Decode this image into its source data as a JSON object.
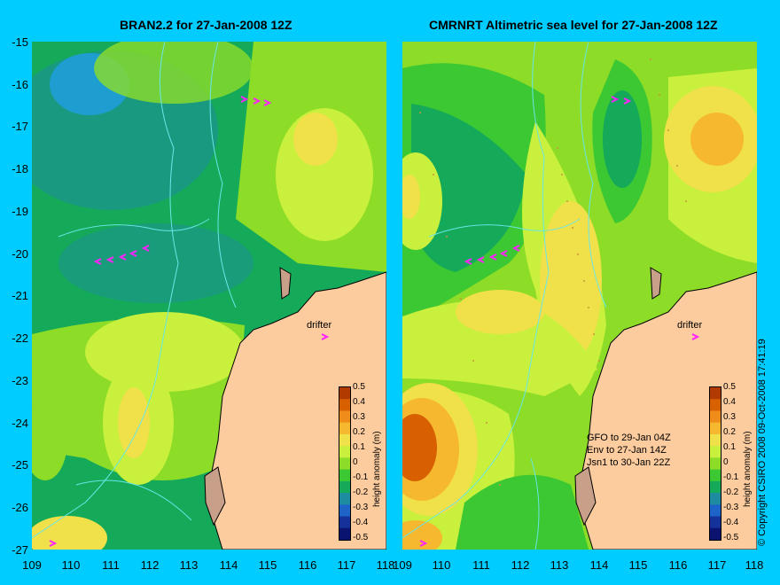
{
  "left_panel": {
    "title": "BRAN2.2 for 27-Jan-2008 12Z",
    "drifter_label": "drifter"
  },
  "right_panel": {
    "title": "CMRNRT Altimetric sea level  for 27-Jan-2008 12Z",
    "drifter_label": "drifter",
    "notes": [
      "GFO to 29-Jan 04Z",
      "Env to 27-Jan 14Z",
      "Jsn1 to 30-Jan 22Z"
    ]
  },
  "y_ticks": [
    "-15",
    "-16",
    "-17",
    "-18",
    "-19",
    "-20",
    "-21",
    "-22",
    "-23",
    "-24",
    "-25",
    "-26",
    "-27"
  ],
  "x_ticks": [
    "109",
    "110",
    "111",
    "112",
    "113",
    "114",
    "115",
    "116",
    "117",
    "118"
  ],
  "colorbar": {
    "title": "height anomaly (m)",
    "labels": [
      "0.5",
      "0.4",
      "0.3",
      "0.2",
      "0.1",
      "0",
      "-0.1",
      "-0.2",
      "-0.3",
      "-0.4",
      "-0.5"
    ],
    "colors": [
      "#b03a00",
      "#d86000",
      "#f08c1a",
      "#f5b82e",
      "#f0e04a",
      "#c8f03c",
      "#8cdc28",
      "#3cc832",
      "#14aa5a",
      "#1e8ca0",
      "#1e64c8",
      "#14329a",
      "#0a1470"
    ]
  },
  "copyright": "© Copyright CSIRO 2008    09-Oct-2008 17:41:19",
  "colors": {
    "background": "#00ccff",
    "land": "#fccb9e",
    "contour": "#6ae6e6",
    "drifter": "#ff22ff"
  }
}
